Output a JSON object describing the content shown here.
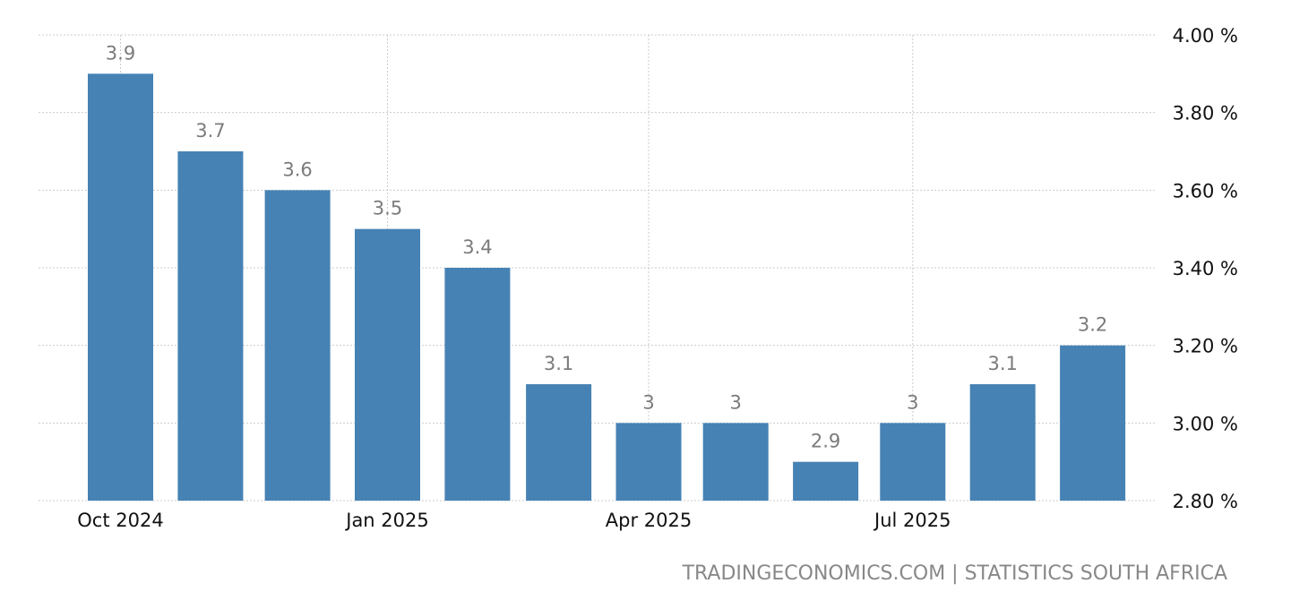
{
  "chart_data": {
    "type": "bar",
    "x": [
      "2024-10-01",
      "2024-11-01",
      "2024-12-01",
      "2025-01-01",
      "2025-02-01",
      "2025-03-01",
      "2025-04-01",
      "2025-05-01",
      "2025-06-01",
      "2025-07-01",
      "2025-08-01",
      "2025-09-01"
    ],
    "values": [
      3.9,
      3.7,
      3.6,
      3.5,
      3.4,
      3.1,
      3,
      3,
      2.9,
      3,
      3.1,
      3.2
    ],
    "data_labels": [
      "3.9",
      "3.7",
      "3.6",
      "3.5",
      "3.4",
      "3.1",
      "3",
      "3",
      "2.9",
      "3",
      "3.1",
      "3.2"
    ],
    "x_ticks": [
      {
        "date": "2024-10-01",
        "label": "Oct 2024"
      },
      {
        "date": "2025-01-01",
        "label": "Jan 2025"
      },
      {
        "date": "2025-04-01",
        "label": "Apr 2025"
      },
      {
        "date": "2025-07-01",
        "label": "Jul 2025"
      }
    ],
    "y_ticks": [
      "4.00 %",
      "3.80 %",
      "3.60 %",
      "3.40 %",
      "3.20 %",
      "3.00 %",
      "2.80 %"
    ],
    "y_tick_values": [
      4.0,
      3.8,
      3.6,
      3.4,
      3.2,
      3.0,
      2.8
    ],
    "ylim": [
      2.8,
      4.0
    ],
    "y_axis_position": "right",
    "grid": true,
    "bar_color": "#4682B4",
    "label_color": "#7b7b7b"
  },
  "footer": {
    "source": "TRADINGECONOMICS.COM | STATISTICS SOUTH AFRICA"
  }
}
